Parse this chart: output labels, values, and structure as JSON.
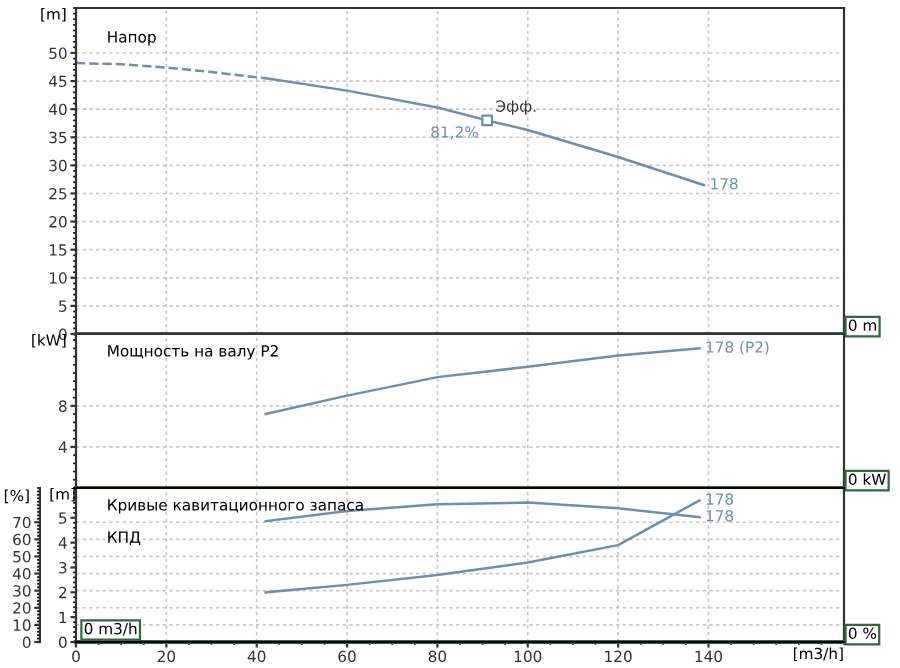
{
  "chart_data": [
    {
      "type": "line",
      "title": "Напор",
      "ylabel": "[m]",
      "xlim": [
        0,
        170
      ],
      "xticks": [
        0,
        20,
        40,
        60,
        80,
        100,
        120,
        140
      ],
      "ylim": [
        0,
        58
      ],
      "yticks": [
        0,
        5,
        10,
        15,
        20,
        25,
        30,
        35,
        40,
        45,
        50
      ],
      "tick_labels": "y",
      "grid": true,
      "series": [
        {
          "color": "#6a8fb5",
          "line_style": "dashed",
          "x": [
            0,
            10,
            20,
            30,
            42
          ],
          "values": [
            48.2,
            48,
            47.4,
            46.6,
            45.5
          ]
        },
        {
          "name": "178",
          "color": "#6a8fb5",
          "x": [
            42,
            60,
            80,
            91,
            100,
            120,
            139
          ],
          "values": [
            45.5,
            43.3,
            40.3,
            38,
            36.3,
            31.5,
            26.5
          ]
        },
        {
          "type": "scatter",
          "marker": "square",
          "color": "#6a8fb5",
          "x": [
            91
          ],
          "values": [
            38
          ]
        }
      ],
      "annotations": [
        {
          "text": "Эфф.",
          "x": 91,
          "y": 38
        },
        {
          "text": "81,2%",
          "x": 91,
          "y": 38
        },
        "0 m"
      ]
    },
    {
      "type": "line",
      "title": "Мощность на валу P2",
      "ylabel": "[kW]",
      "xlim": [
        0,
        170
      ],
      "xticks": [
        0,
        20,
        40,
        60,
        80,
        100,
        120,
        140
      ],
      "ylim": [
        0,
        15
      ],
      "yticks": [
        4,
        8
      ],
      "tick_labels": "y",
      "grid": true,
      "series": [
        {
          "name": "178 (P2)",
          "color": "#6a8fb5",
          "x": [
            42,
            60,
            80,
            100,
            120,
            138
          ],
          "values": [
            7.2,
            9.0,
            10.8,
            11.8,
            12.9,
            13.6
          ]
        }
      ],
      "annotations": [
        "0 kW"
      ]
    },
    {
      "type": "line",
      "title": "Кривые кавитационного запаса",
      "subtitle": "КПД",
      "ylabel": "[%]",
      "y2label": "[m]",
      "xlabel": "[m3/h]",
      "xlim": [
        0,
        170
      ],
      "xticks": [
        0,
        20,
        40,
        60,
        80,
        100,
        120,
        140
      ],
      "ylim": [
        0,
        90
      ],
      "yticks": [
        0,
        10,
        20,
        30,
        40,
        50,
        60,
        70
      ],
      "y2lim": [
        0,
        6.2
      ],
      "y2ticks": [
        0,
        1,
        2,
        3,
        4,
        5
      ],
      "grid": true,
      "series": [
        {
          "name": "178",
          "color": "#6a8fb5",
          "x": [
            42,
            60,
            80,
            100,
            120,
            138
          ],
          "values": [
            70.6,
            76.5,
            80.5,
            81.5,
            78.1,
            73
          ]
        },
        {
          "name": "178",
          "color": "#6a8fb5",
          "axis": "y2",
          "x": [
            42,
            60,
            80,
            100,
            120,
            138
          ],
          "values": [
            2.0,
            2.3,
            2.7,
            3.2,
            3.9,
            5.7
          ]
        }
      ],
      "annotations": [
        "0 %",
        "0 m3/h"
      ]
    }
  ]
}
